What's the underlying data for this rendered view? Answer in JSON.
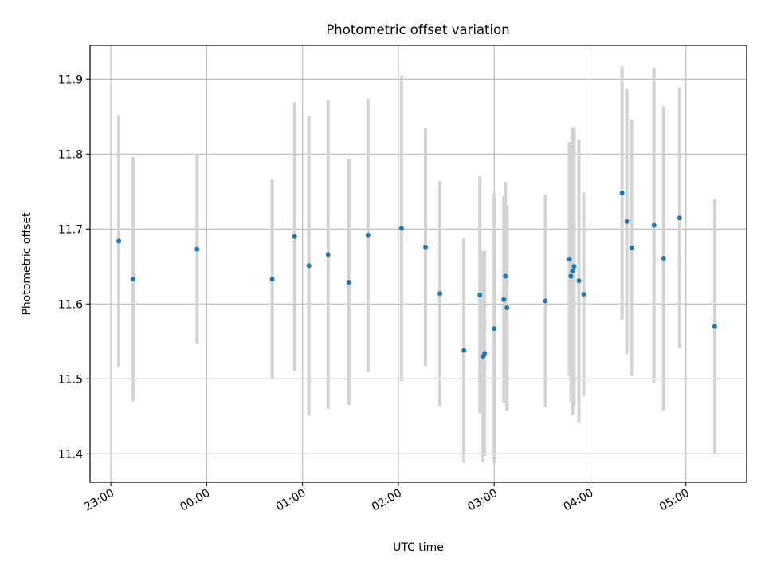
{
  "chart_data": {
    "type": "scatter",
    "title": "Photometric offset variation",
    "xlabel": "UTC time",
    "ylabel": "Photometric offset",
    "x_is_time": true,
    "xlim": [
      "22:47",
      "05:38"
    ],
    "ylim": [
      11.362,
      11.945
    ],
    "x_ticks": [
      "23:00",
      "00:00",
      "01:00",
      "02:00",
      "03:00",
      "04:00",
      "05:00"
    ],
    "y_ticks": [
      11.4,
      11.5,
      11.6,
      11.7,
      11.8,
      11.9
    ],
    "grid": true,
    "error_bar_color": "#d3d3d3",
    "marker_color": "#1f77b4",
    "points": [
      {
        "t": "23:05",
        "y": 11.684,
        "err": 0.168
      },
      {
        "t": "23:14",
        "y": 11.633,
        "err": 0.163
      },
      {
        "t": "23:54",
        "y": 11.673,
        "err": 0.126
      },
      {
        "t": "00:41",
        "y": 11.633,
        "err": 0.133
      },
      {
        "t": "00:55",
        "y": 11.69,
        "err": 0.179
      },
      {
        "t": "01:04",
        "y": 11.651,
        "err": 0.2
      },
      {
        "t": "01:16",
        "y": 11.666,
        "err": 0.206
      },
      {
        "t": "01:29",
        "y": 11.629,
        "err": 0.164
      },
      {
        "t": "01:41",
        "y": 11.692,
        "err": 0.182
      },
      {
        "t": "02:02",
        "y": 11.701,
        "err": 0.204
      },
      {
        "t": "02:17",
        "y": 11.676,
        "err": 0.159
      },
      {
        "t": "02:26",
        "y": 11.614,
        "err": 0.15
      },
      {
        "t": "02:41",
        "y": 11.538,
        "err": 0.15
      },
      {
        "t": "02:51",
        "y": 11.612,
        "err": 0.158
      },
      {
        "t": "02:53",
        "y": 11.53,
        "err": 0.141
      },
      {
        "t": "02:54",
        "y": 11.534,
        "err": 0.137
      },
      {
        "t": "03:00",
        "y": 11.567,
        "err": 0.18
      },
      {
        "t": "03:06",
        "y": 11.606,
        "err": 0.138
      },
      {
        "t": "03:07",
        "y": 11.637,
        "err": 0.126
      },
      {
        "t": "03:08",
        "y": 11.595,
        "err": 0.137
      },
      {
        "t": "03:32",
        "y": 11.604,
        "err": 0.142
      },
      {
        "t": "03:47",
        "y": 11.66,
        "err": 0.156
      },
      {
        "t": "03:48",
        "y": 11.637,
        "err": 0.167
      },
      {
        "t": "03:49",
        "y": 11.644,
        "err": 0.192
      },
      {
        "t": "03:50",
        "y": 11.65,
        "err": 0.186
      },
      {
        "t": "03:53",
        "y": 11.631,
        "err": 0.189
      },
      {
        "t": "03:56",
        "y": 11.613,
        "err": 0.136
      },
      {
        "t": "04:20",
        "y": 11.748,
        "err": 0.169
      },
      {
        "t": "04:23",
        "y": 11.71,
        "err": 0.177
      },
      {
        "t": "04:26",
        "y": 11.675,
        "err": 0.171
      },
      {
        "t": "04:40",
        "y": 11.705,
        "err": 0.21
      },
      {
        "t": "04:46",
        "y": 11.661,
        "err": 0.203
      },
      {
        "t": "04:56",
        "y": 11.715,
        "err": 0.174
      },
      {
        "t": "05:18",
        "y": 11.57,
        "err": 0.17
      }
    ]
  }
}
